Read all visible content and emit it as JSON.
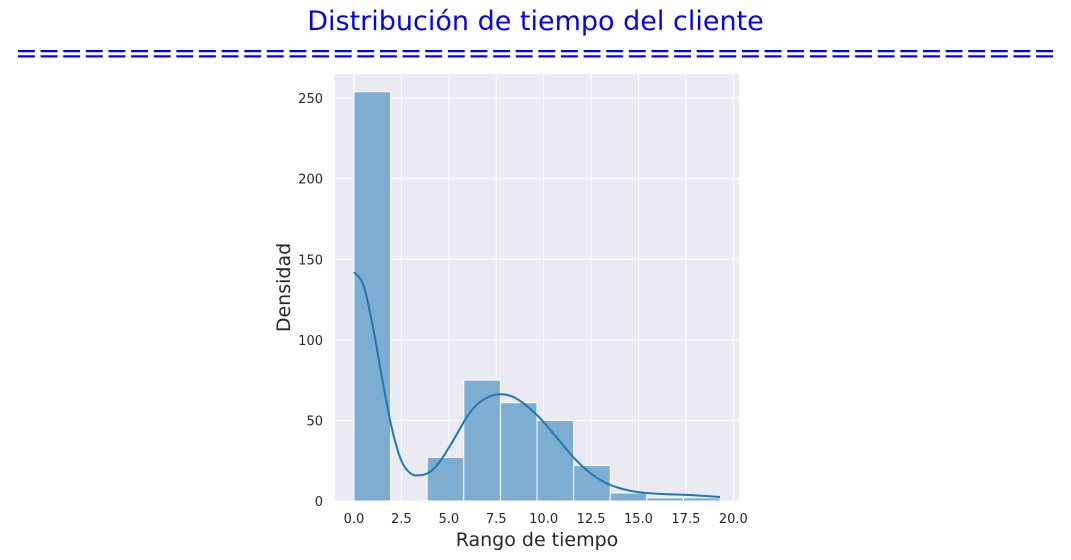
{
  "title_line1": "Distribución de tiempo del cliente",
  "title_line2": "==============================================",
  "chart_data": {
    "type": "bar",
    "subtype": "histogram_with_kde",
    "xlabel": "Rango de tiempo",
    "ylabel": "Densidad",
    "xlim": [
      -1.0,
      20.3
    ],
    "ylim": [
      0,
      265
    ],
    "x_ticks": [
      0.0,
      2.5,
      5.0,
      7.5,
      10.0,
      12.5,
      15.0,
      17.5,
      20.0
    ],
    "x_tick_labels": [
      "0.0",
      "2.5",
      "5.0",
      "7.5",
      "10.0",
      "12.5",
      "15.0",
      "17.5",
      "20.0"
    ],
    "y_ticks": [
      0,
      50,
      100,
      150,
      200,
      250
    ],
    "y_tick_labels": [
      "0",
      "50",
      "100",
      "150",
      "200",
      "250"
    ],
    "bin_edges": [
      0.0,
      1.93,
      3.86,
      5.79,
      7.72,
      9.65,
      11.58,
      13.51,
      15.44,
      17.37,
      19.3
    ],
    "values": [
      254,
      0,
      27,
      75,
      61,
      50,
      22,
      5,
      2,
      2
    ],
    "kde": {
      "x": [
        0.0,
        0.5,
        1.0,
        1.5,
        2.0,
        2.5,
        3.0,
        3.5,
        4.0,
        4.5,
        5.0,
        5.5,
        6.0,
        6.5,
        7.0,
        7.5,
        8.0,
        8.5,
        9.0,
        9.5,
        10.0,
        10.5,
        11.0,
        11.5,
        12.0,
        12.5,
        13.0,
        13.5,
        14.0,
        14.5,
        15.0,
        16.0,
        17.0,
        18.0,
        19.3
      ],
      "y": [
        142,
        134,
        108,
        75,
        45,
        25,
        17,
        16,
        18,
        24,
        33,
        43,
        53,
        60,
        64,
        66,
        66,
        64,
        60,
        55,
        49,
        42,
        35,
        28,
        22,
        17,
        13,
        10,
        8,
        6.5,
        5.5,
        4.5,
        4,
        3.5,
        2.5
      ]
    },
    "grid": true,
    "colors": {
      "bar_fill": "#7eadd2",
      "bar_edge": "#ffffff",
      "kde_line": "#1f77b4",
      "plot_bg": "#eaeaf2",
      "grid": "#ffffff",
      "title": "#0000ff"
    }
  }
}
